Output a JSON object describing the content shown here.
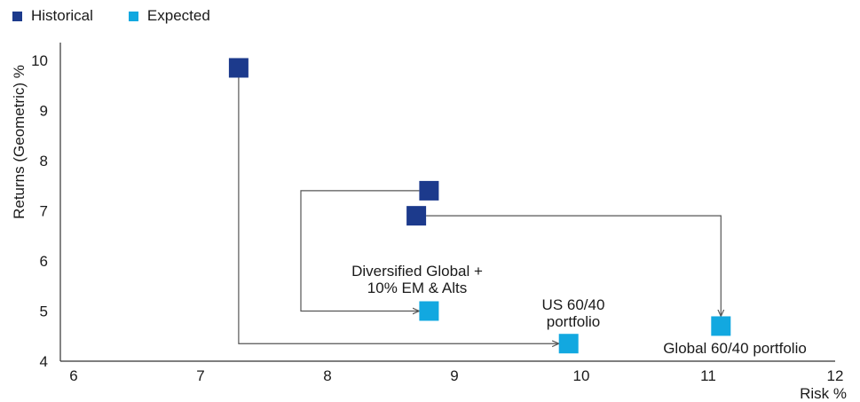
{
  "chart_data": {
    "type": "scatter",
    "title": "",
    "xlabel": "Risk %",
    "ylabel": "Returns (Geometric) %",
    "xlim": [
      6,
      12
    ],
    "ylim": [
      4,
      10
    ],
    "xticks": [
      6,
      7,
      8,
      9,
      10,
      11,
      12
    ],
    "yticks": [
      4,
      5,
      6,
      7,
      8,
      9,
      10
    ],
    "grid": false,
    "legend_position": "top-left",
    "series": [
      {
        "name": "Historical",
        "color": "#1c3a8c",
        "points": [
          {
            "id": "us",
            "x": 7.3,
            "y": 9.85
          },
          {
            "id": "div",
            "x": 8.8,
            "y": 7.4
          },
          {
            "id": "glob",
            "x": 8.7,
            "y": 6.9
          }
        ]
      },
      {
        "name": "Expected",
        "color": "#12a8e0",
        "points": [
          {
            "id": "us",
            "x": 9.9,
            "y": 4.35
          },
          {
            "id": "div",
            "x": 8.8,
            "y": 5.0
          },
          {
            "id": "glob",
            "x": 11.1,
            "y": 4.7
          }
        ]
      }
    ],
    "annotations": [
      {
        "id": "div",
        "lines": [
          "Diversified Global +",
          "10% EM & Alts"
        ]
      },
      {
        "id": "us",
        "lines": [
          "US 60/40",
          "portfolio"
        ]
      },
      {
        "id": "glob",
        "lines": [
          "Global 60/40 portfolio"
        ]
      }
    ],
    "connector_color": "#555555"
  }
}
